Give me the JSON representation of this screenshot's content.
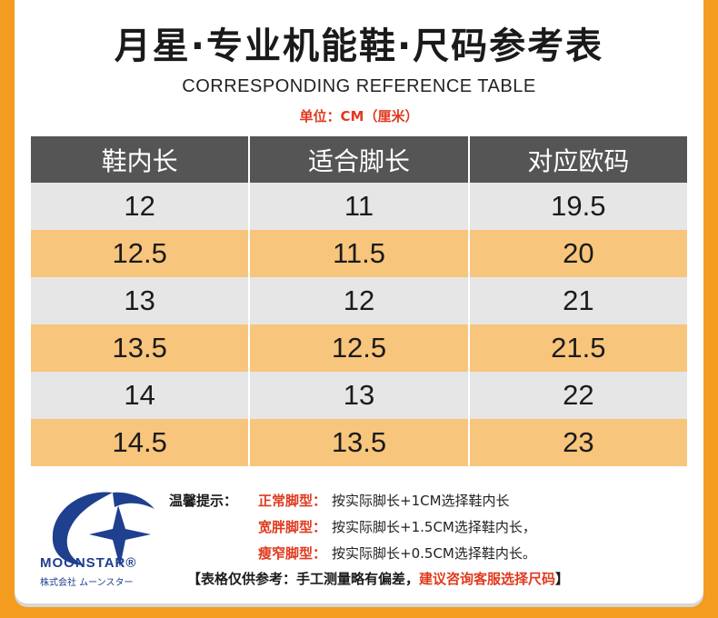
{
  "header": {
    "title": "月星·专业机能鞋·尺码参考表",
    "subtitle": "CORRESPONDING REFERENCE TABLE",
    "unit": "单位：CM（厘米）"
  },
  "table": {
    "columns": [
      "鞋内长",
      "适合脚长",
      "对应欧码"
    ],
    "rows": [
      [
        "12",
        "11",
        "19.5"
      ],
      [
        "12.5",
        "11.5",
        "20"
      ],
      [
        "13",
        "12",
        "21"
      ],
      [
        "13.5",
        "12.5",
        "21.5"
      ],
      [
        "14",
        "13",
        "22"
      ],
      [
        "14.5",
        "13.5",
        "23"
      ]
    ]
  },
  "brand": {
    "name": "MOONSTAR®",
    "sub": "株式会社 ムーンスター"
  },
  "tips": {
    "heading": "温馨提示：",
    "items": [
      {
        "type": "正常脚型：",
        "text": "按实际脚长+1CM选择鞋内长"
      },
      {
        "type": "宽胖脚型：",
        "text": "按实际脚长+1.5CM选择鞋内长，"
      },
      {
        "type": "瘦窄脚型：",
        "text": "按实际脚长+0.5CM选择鞋内长。"
      }
    ],
    "note_black": "【表格仅供参考：手工测量略有偏差，",
    "note_red": "建议咨询客服选择尺码",
    "note_end": "】"
  },
  "colors": {
    "background": "#f39c1f",
    "header_bg": "#555555",
    "row_grey": "#e6e6e6",
    "row_orange": "#f8c57c",
    "accent_red": "#e03a1e",
    "logo_blue": "#1f3f8f"
  }
}
